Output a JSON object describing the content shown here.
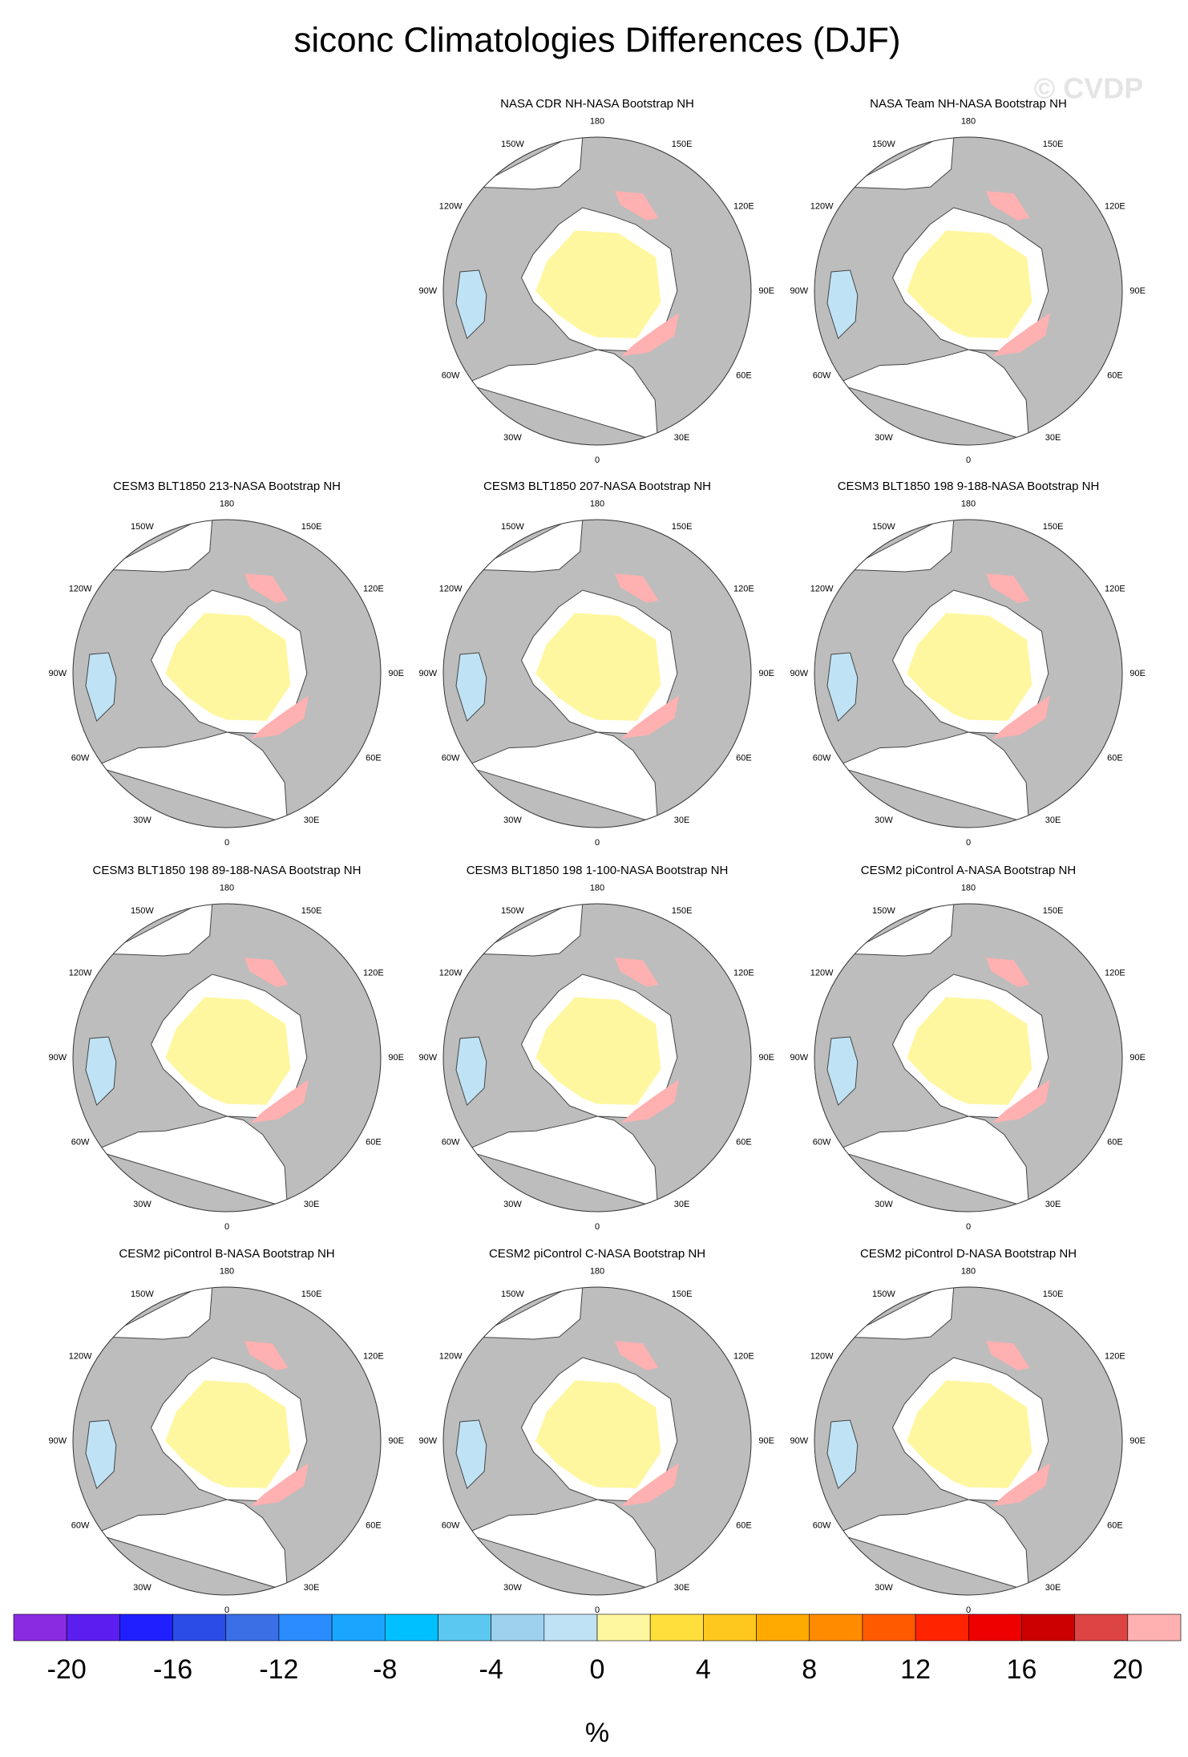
{
  "title": "siconc Climatologies Differences (DJF)",
  "watermark": "© CVDP",
  "panels": [
    {
      "title": "NASA CDR NH-NASA Bootstrap NH"
    },
    {
      "title": "NASA Team NH-NASA Bootstrap NH"
    },
    {
      "title": "CESM3 BLT1850 213-NASA Bootstrap NH"
    },
    {
      "title": "CESM3 BLT1850 207-NASA Bootstrap NH"
    },
    {
      "title": "CESM3 BLT1850 198 9-188-NASA Bootstrap NH"
    },
    {
      "title": "CESM3 BLT1850 198 89-188-NASA Bootstrap NH"
    },
    {
      "title": "CESM3 BLT1850 198 1-100-NASA Bootstrap NH"
    },
    {
      "title": "CESM2 piControl A-NASA Bootstrap NH"
    },
    {
      "title": "CESM2 piControl B-NASA Bootstrap NH"
    },
    {
      "title": "CESM2 piControl C-NASA Bootstrap NH"
    },
    {
      "title": "CESM2 piControl D-NASA Bootstrap NH"
    }
  ],
  "lon_labels": [
    "0",
    "30E",
    "60E",
    "90E",
    "120E",
    "150E",
    "180",
    "150W",
    "120W",
    "90W",
    "60W",
    "30W"
  ],
  "colorbar": {
    "colors": [
      "#8a2be2",
      "#5a1ef0",
      "#1f1fff",
      "#2b4ce6",
      "#3a6fe6",
      "#2a8cff",
      "#1aa6ff",
      "#00c0ff",
      "#5ac8f0",
      "#9dd1ee",
      "#bfe3f5",
      "#fff7a0",
      "#ffdf3c",
      "#ffc81e",
      "#ffaa00",
      "#ff8c00",
      "#ff5a00",
      "#ff2400",
      "#ee0000",
      "#cc0000",
      "#dd4444",
      "#ffb0b0"
    ],
    "ticks": [
      -20,
      -16,
      -12,
      -8,
      -4,
      0,
      4,
      8,
      12,
      16,
      20
    ],
    "unit": "%"
  }
}
